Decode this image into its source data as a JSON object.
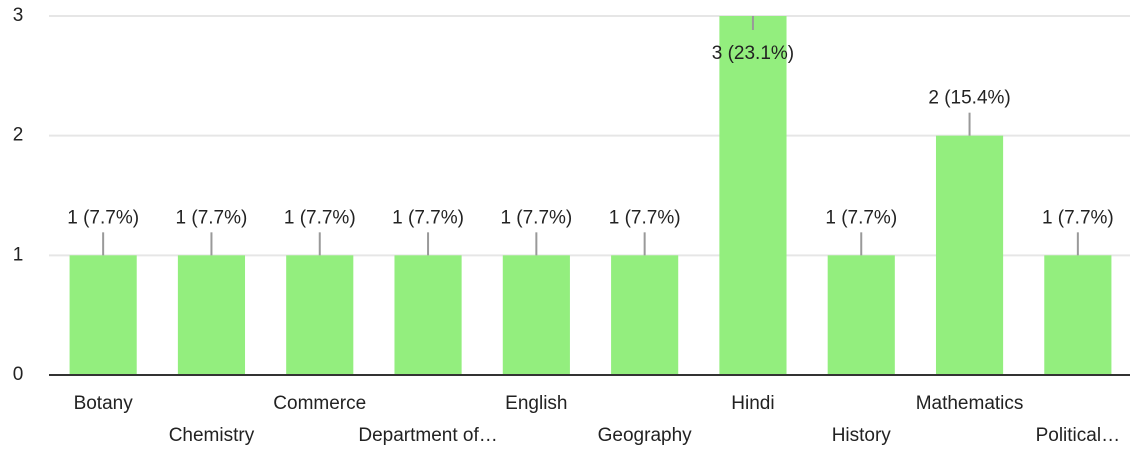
{
  "chart_data": {
    "type": "bar",
    "categories": [
      "Botany",
      "Chemistry",
      "Commerce",
      "Department of…",
      "English",
      "Geography",
      "Hindi",
      "History",
      "Mathematics",
      "Political…"
    ],
    "values": [
      1,
      1,
      1,
      1,
      1,
      1,
      3,
      1,
      2,
      1
    ],
    "value_labels": [
      "1 (7.7%)",
      "1 (7.7%)",
      "1 (7.7%)",
      "1 (7.7%)",
      "1 (7.7%)",
      "1 (7.7%)",
      "3 (23.1%)",
      "1 (7.7%)",
      "2 (15.4%)",
      "1 (7.7%)"
    ],
    "color": "#93ee7e",
    "ylim": [
      0,
      3
    ],
    "yticks": [
      0,
      1,
      2,
      3
    ],
    "grid": true
  }
}
